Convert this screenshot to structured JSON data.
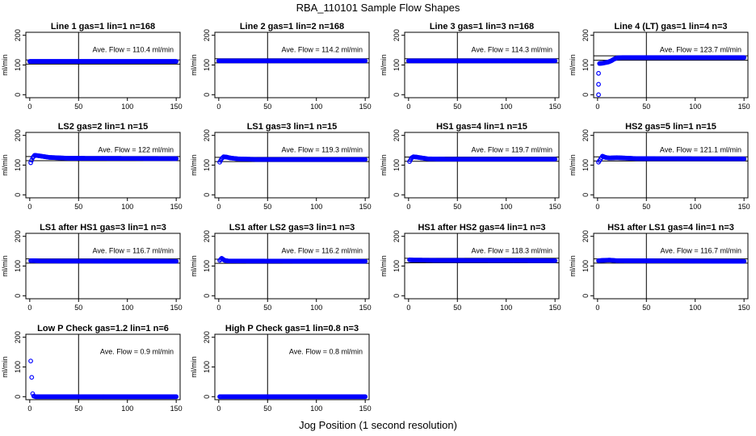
{
  "figure": {
    "title": "RBA_110101   Sample Flow Shapes",
    "xlabel": "Jog Position (1 second resolution)",
    "point_color": "#0000ff"
  },
  "chart_data": [
    {
      "type": "scatter",
      "title": "Line 1 gas=1 lin=1 n=168",
      "ylabel": "ml/min",
      "xlim": [
        0,
        150
      ],
      "ylim": [
        -10,
        210
      ],
      "xticks": [
        0,
        50,
        100,
        150
      ],
      "yticks": [
        0,
        100,
        200
      ],
      "avg_label": "Ave. Flow = 110.4  ml/min",
      "avg": 110.4,
      "band": [
        103,
        117
      ],
      "vline_x": 50,
      "points": [
        [
          0,
          112
        ],
        [
          150,
          112
        ]
      ]
    },
    {
      "type": "scatter",
      "title": "Line 2 gas=1 lin=2 n=168",
      "ylabel": "ml/min",
      "xlim": [
        0,
        150
      ],
      "ylim": [
        -10,
        210
      ],
      "xticks": [
        0,
        50,
        100,
        150
      ],
      "yticks": [
        0,
        100,
        200
      ],
      "avg_label": "Ave. Flow = 114.2  ml/min",
      "avg": 114.2,
      "band": [
        107,
        121
      ],
      "vline_x": 50,
      "points": [
        [
          0,
          114
        ],
        [
          150,
          114
        ]
      ]
    },
    {
      "type": "scatter",
      "title": "Line 3 gas=1 lin=3 n=168",
      "ylabel": "ml/min",
      "xlim": [
        0,
        150
      ],
      "ylim": [
        -10,
        210
      ],
      "xticks": [
        0,
        50,
        100,
        150
      ],
      "yticks": [
        0,
        100,
        200
      ],
      "avg_label": "Ave. Flow = 114.3  ml/min",
      "avg": 114.3,
      "band": [
        107,
        121
      ],
      "vline_x": 50,
      "points": [
        [
          0,
          114
        ],
        [
          150,
          114
        ]
      ]
    },
    {
      "type": "scatter",
      "title": "Line 4 (LT) gas=1 lin=4 n=3",
      "ylabel": "ml/min",
      "xlim": [
        0,
        150
      ],
      "ylim": [
        -10,
        210
      ],
      "xticks": [
        0,
        50,
        100,
        150
      ],
      "yticks": [
        0,
        100,
        200
      ],
      "avg_label": "Ave. Flow = 123.7  ml/min",
      "avg": 123.7,
      "band": [
        116,
        131
      ],
      "vline_x": 50,
      "points": [
        [
          1,
          0
        ],
        [
          1,
          35
        ],
        [
          1,
          72
        ],
        [
          2,
          105
        ],
        [
          5,
          106
        ],
        [
          8,
          108
        ],
        [
          11,
          110
        ],
        [
          14,
          114
        ],
        [
          17,
          120
        ],
        [
          20,
          124
        ],
        [
          25,
          125
        ],
        [
          150,
          125
        ]
      ]
    },
    {
      "type": "scatter",
      "title": "LS2 gas=2 lin=1 n=15",
      "ylabel": "ml/min",
      "xlim": [
        0,
        150
      ],
      "ylim": [
        -10,
        210
      ],
      "xticks": [
        0,
        50,
        100,
        150
      ],
      "yticks": [
        0,
        100,
        200
      ],
      "avg_label": "Ave. Flow = 122  ml/min",
      "avg": 122,
      "band": [
        115,
        129
      ],
      "vline_x": 50,
      "points": [
        [
          1,
          108
        ],
        [
          3,
          125
        ],
        [
          5,
          133
        ],
        [
          8,
          132
        ],
        [
          12,
          130
        ],
        [
          20,
          126
        ],
        [
          40,
          123
        ],
        [
          150,
          122
        ]
      ]
    },
    {
      "type": "scatter",
      "title": "LS1 gas=3 lin=1 n=15",
      "ylabel": "ml/min",
      "xlim": [
        0,
        150
      ],
      "ylim": [
        -10,
        210
      ],
      "xticks": [
        0,
        50,
        100,
        150
      ],
      "yticks": [
        0,
        100,
        200
      ],
      "avg_label": "Ave. Flow = 119.3  ml/min",
      "avg": 119.3,
      "band": [
        112,
        126
      ],
      "vline_x": 50,
      "points": [
        [
          1,
          110
        ],
        [
          3,
          122
        ],
        [
          5,
          128
        ],
        [
          8,
          127
        ],
        [
          12,
          124
        ],
        [
          20,
          121
        ],
        [
          40,
          119
        ],
        [
          150,
          119
        ]
      ]
    },
    {
      "type": "scatter",
      "title": "HS1 gas=4 lin=1 n=15",
      "ylabel": "ml/min",
      "xlim": [
        0,
        150
      ],
      "ylim": [
        -10,
        210
      ],
      "xticks": [
        0,
        50,
        100,
        150
      ],
      "yticks": [
        0,
        100,
        200
      ],
      "avg_label": "Ave. Flow = 119.7  ml/min",
      "avg": 119.7,
      "band": [
        113,
        127
      ],
      "vline_x": 50,
      "points": [
        [
          1,
          112
        ],
        [
          3,
          124
        ],
        [
          5,
          128
        ],
        [
          8,
          127
        ],
        [
          12,
          125
        ],
        [
          20,
          121
        ],
        [
          40,
          120
        ],
        [
          150,
          120
        ]
      ]
    },
    {
      "type": "scatter",
      "title": "HS2 gas=5 lin=1 n=15",
      "ylabel": "ml/min",
      "xlim": [
        0,
        150
      ],
      "ylim": [
        -10,
        210
      ],
      "xticks": [
        0,
        50,
        100,
        150
      ],
      "yticks": [
        0,
        100,
        200
      ],
      "avg_label": "Ave. Flow = 121.1  ml/min",
      "avg": 121.1,
      "band": [
        114,
        128
      ],
      "vline_x": 50,
      "points": [
        [
          1,
          110
        ],
        [
          3,
          120
        ],
        [
          5,
          130
        ],
        [
          8,
          126
        ],
        [
          12,
          124
        ],
        [
          20,
          125
        ],
        [
          40,
          122
        ],
        [
          150,
          121
        ]
      ]
    },
    {
      "type": "scatter",
      "title": "LS1 after HS1 gas=3 lin=1 n=3",
      "ylabel": "ml/min",
      "xlim": [
        0,
        150
      ],
      "ylim": [
        -10,
        210
      ],
      "xticks": [
        0,
        50,
        100,
        150
      ],
      "yticks": [
        0,
        100,
        200
      ],
      "avg_label": "Ave. Flow = 116.7  ml/min",
      "avg": 116.7,
      "band": [
        110,
        124
      ],
      "vline_x": 50,
      "points": [
        [
          1,
          118
        ],
        [
          5,
          118
        ],
        [
          10,
          117
        ],
        [
          150,
          116
        ]
      ]
    },
    {
      "type": "scatter",
      "title": "LS1 after LS2 gas=3 lin=1 n=3",
      "ylabel": "ml/min",
      "xlim": [
        0,
        150
      ],
      "ylim": [
        -10,
        210
      ],
      "xticks": [
        0,
        50,
        100,
        150
      ],
      "yticks": [
        0,
        100,
        200
      ],
      "avg_label": "Ave. Flow = 116.2  ml/min",
      "avg": 116.2,
      "band": [
        109,
        123
      ],
      "vline_x": 50,
      "points": [
        [
          1,
          119
        ],
        [
          3,
          126
        ],
        [
          6,
          119
        ],
        [
          10,
          117
        ],
        [
          150,
          116
        ]
      ]
    },
    {
      "type": "scatter",
      "title": "HS1 after HS2 gas=4 lin=1 n=3",
      "ylabel": "ml/min",
      "xlim": [
        0,
        150
      ],
      "ylim": [
        -10,
        210
      ],
      "xticks": [
        0,
        50,
        100,
        150
      ],
      "yticks": [
        0,
        100,
        200
      ],
      "avg_label": "Ave. Flow = 118.3  ml/min",
      "avg": 118.3,
      "band": [
        111,
        126
      ],
      "vline_x": 50,
      "points": [
        [
          1,
          121
        ],
        [
          5,
          120
        ],
        [
          10,
          120
        ],
        [
          30,
          119
        ],
        [
          150,
          118
        ]
      ]
    },
    {
      "type": "scatter",
      "title": "HS1 after LS1 gas=4 lin=1 n=3",
      "ylabel": "ml/min",
      "xlim": [
        0,
        150
      ],
      "ylim": [
        -10,
        210
      ],
      "xticks": [
        0,
        50,
        100,
        150
      ],
      "yticks": [
        0,
        100,
        200
      ],
      "avg_label": "Ave. Flow = 116.7  ml/min",
      "avg": 116.7,
      "band": [
        110,
        124
      ],
      "vline_x": 50,
      "points": [
        [
          1,
          118
        ],
        [
          5,
          119
        ],
        [
          12,
          120
        ],
        [
          20,
          118
        ],
        [
          150,
          116
        ]
      ]
    },
    {
      "type": "scatter",
      "title": "Low P Check gas=1.2 lin=1 n=6",
      "ylabel": "ml/min",
      "xlim": [
        0,
        150
      ],
      "ylim": [
        -10,
        210
      ],
      "xticks": [
        0,
        50,
        100,
        150
      ],
      "yticks": [
        0,
        100,
        200
      ],
      "avg_label": "Ave. Flow =  0.9  ml/min",
      "avg": 0.9,
      "band": null,
      "vline_x": 50,
      "points": [
        [
          1,
          120
        ],
        [
          2,
          65
        ],
        [
          3,
          10
        ],
        [
          4,
          2
        ],
        [
          6,
          0
        ],
        [
          150,
          0
        ]
      ]
    },
    {
      "type": "scatter",
      "title": "High P Check gas=1 lin=0.8 n=3",
      "ylabel": "ml/min",
      "xlim": [
        0,
        150
      ],
      "ylim": [
        -10,
        210
      ],
      "xticks": [
        0,
        50,
        100,
        150
      ],
      "yticks": [
        0,
        100,
        200
      ],
      "avg_label": "Ave. Flow =  0.8  ml/min",
      "avg": 0.8,
      "band": null,
      "vline_x": 50,
      "points": [
        [
          1,
          0
        ],
        [
          150,
          0
        ]
      ]
    }
  ]
}
